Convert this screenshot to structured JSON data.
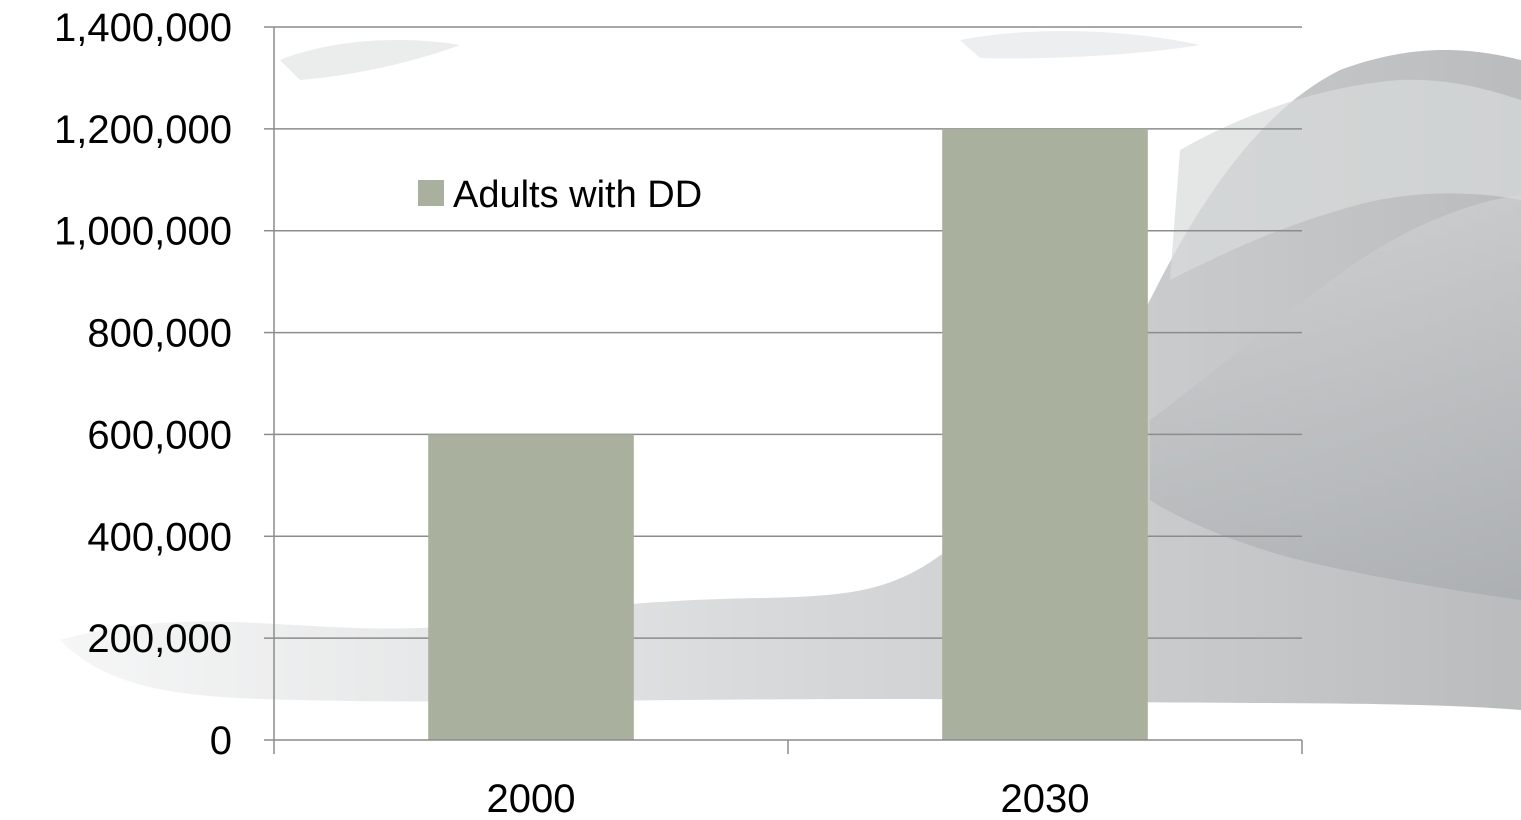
{
  "chart_data": {
    "type": "bar",
    "categories": [
      "2000",
      "2030"
    ],
    "series": [
      {
        "name": "Adults with DD",
        "values": [
          600000,
          1200000
        ],
        "color": "#a9b09e"
      }
    ],
    "title": "",
    "xlabel": "",
    "ylabel": "",
    "ylim": [
      0,
      1400000
    ],
    "yticks": [
      0,
      200000,
      400000,
      600000,
      800000,
      1000000,
      1200000,
      1400000
    ],
    "ytick_labels": [
      "0",
      "200,000",
      "400,000",
      "600,000",
      "800,000",
      "1,000,000",
      "1,200,000",
      "1,400,000"
    ],
    "grid": true,
    "legend_position": "top-left inside plot"
  },
  "colors": {
    "gridline": "#8c8c8c",
    "axis": "#8c8c8c",
    "background_wave": "#c9cbcc"
  },
  "legend": {
    "label": "Adults with DD"
  }
}
